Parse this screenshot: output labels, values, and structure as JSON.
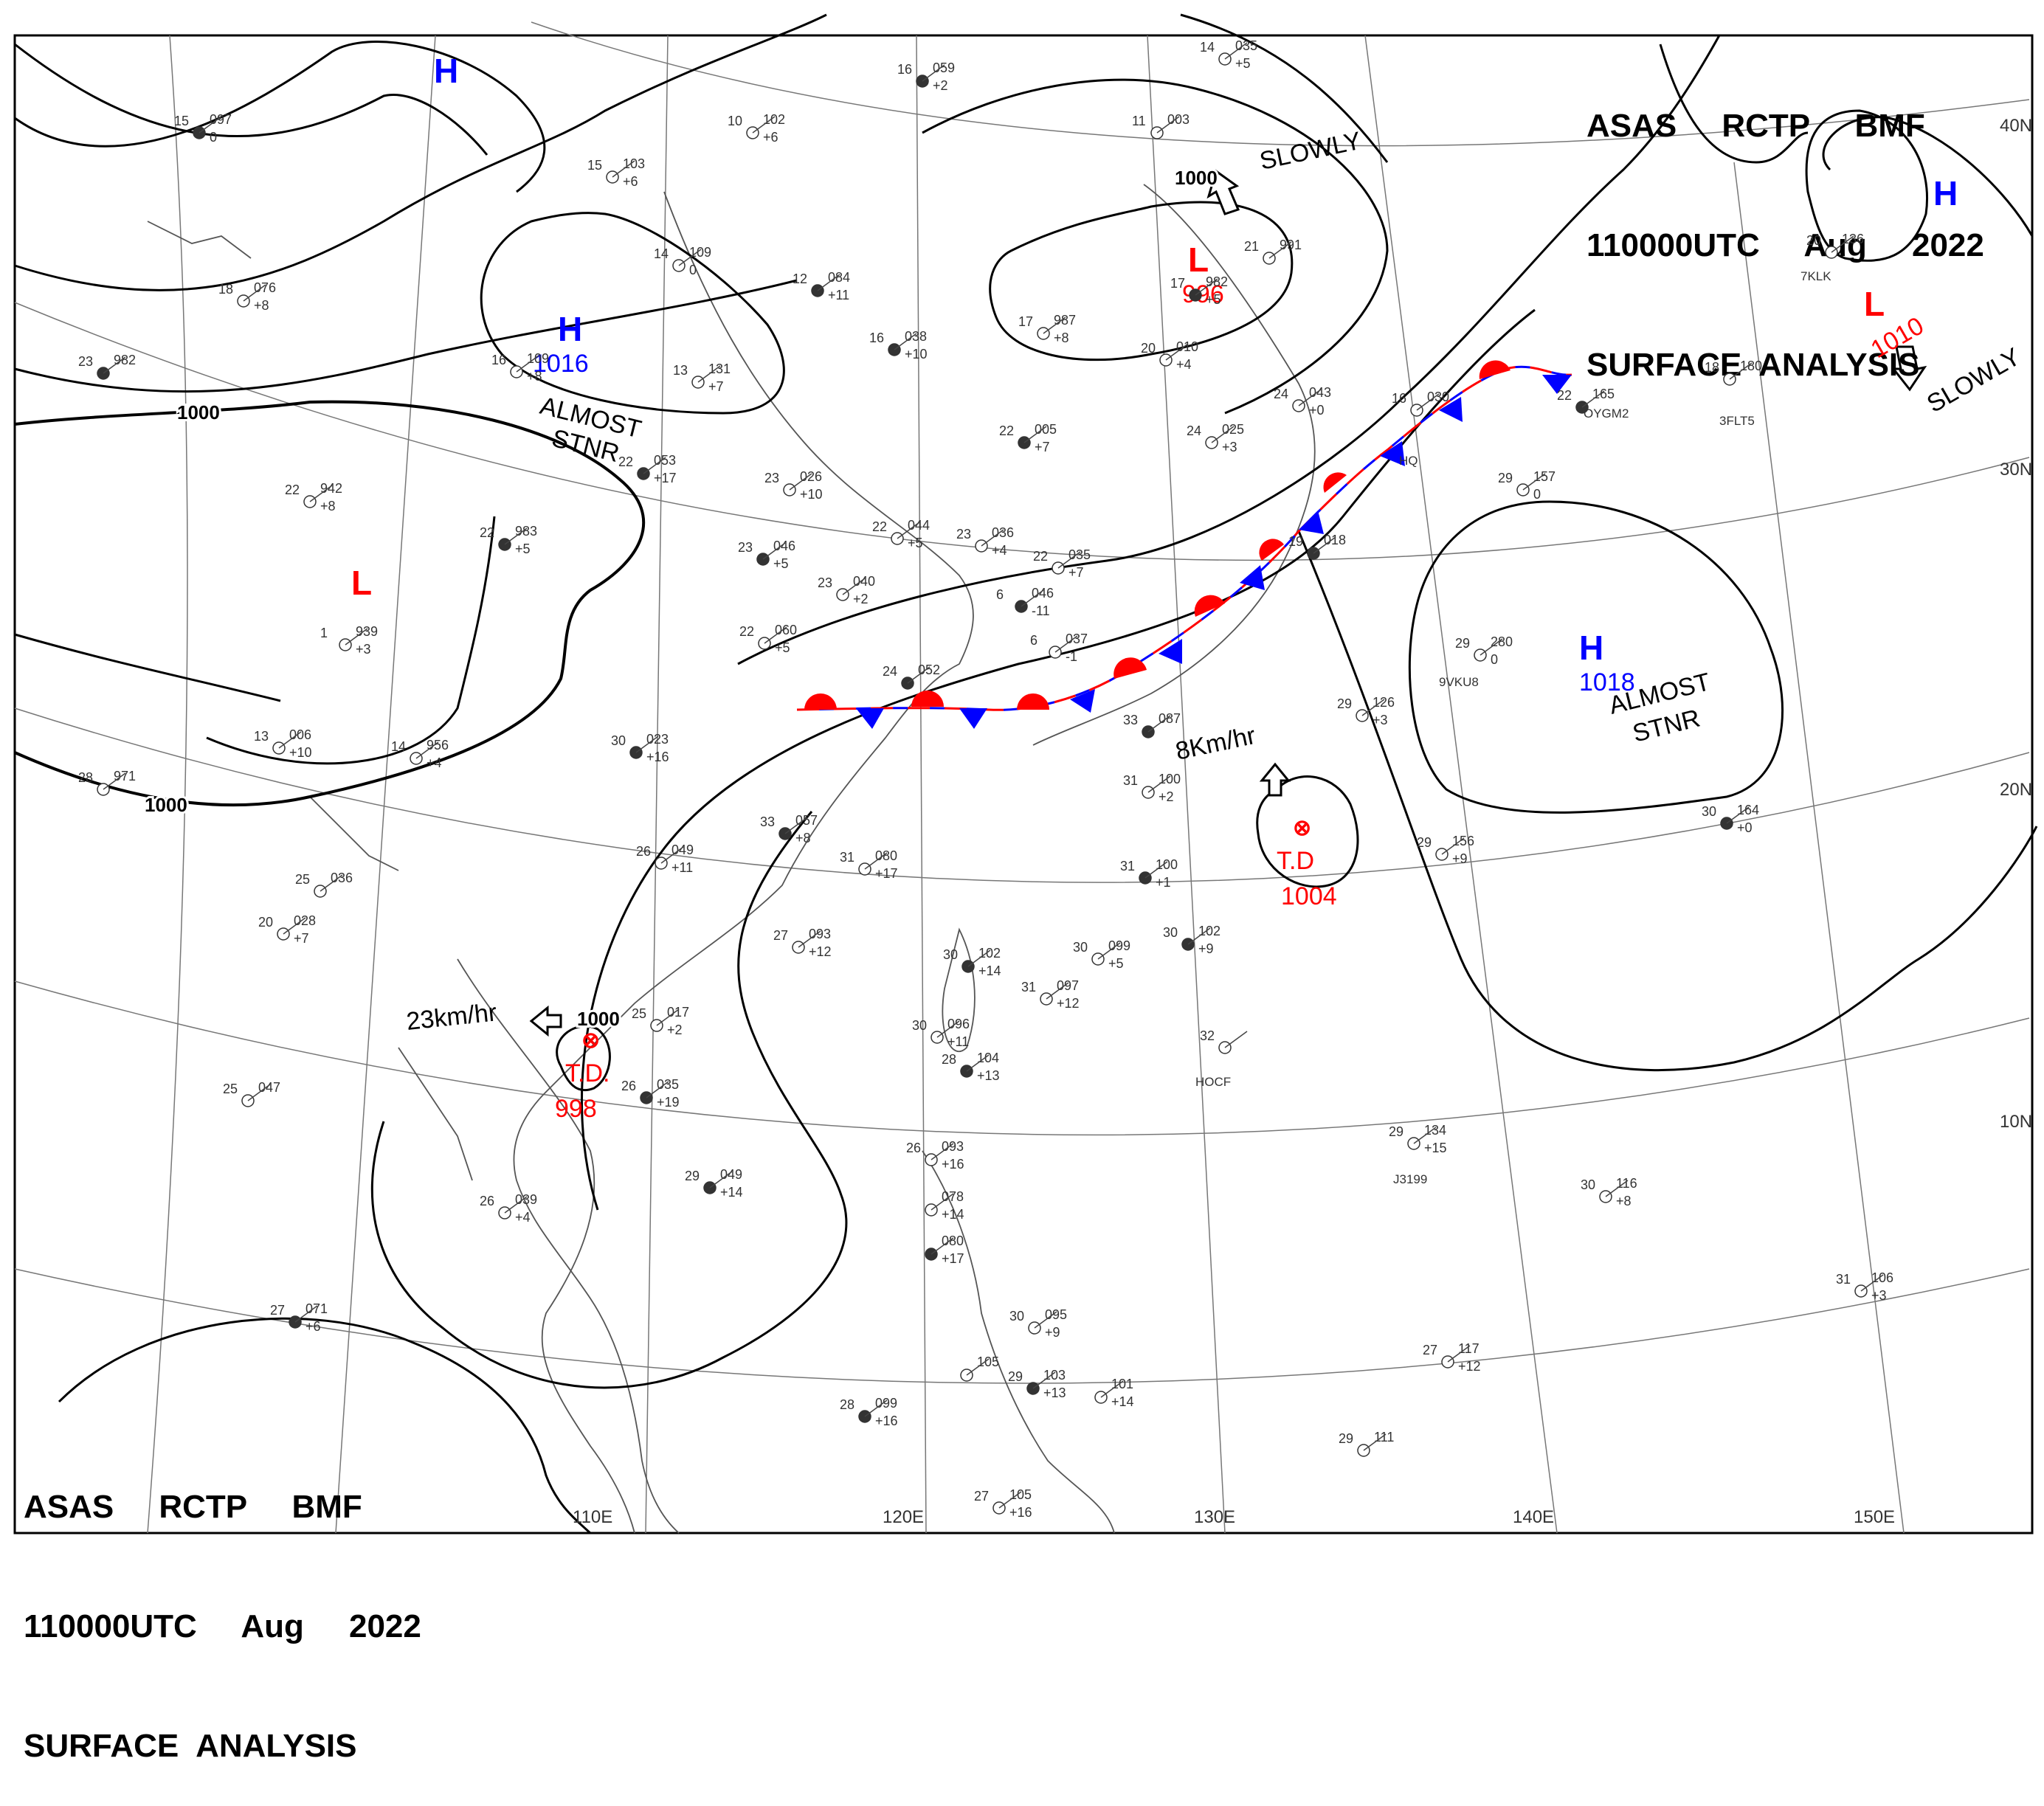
{
  "header": {
    "line1": "ASAS     RCTP     BMF",
    "line2": "110000UTC     Aug     2022",
    "line3": "SURFACE  ANALYSIS"
  },
  "colors": {
    "high": "#0000ff",
    "low": "#ff0000",
    "isobar": "#000000",
    "station": "#333333"
  },
  "lon_labels": [
    "110E",
    "120E",
    "130E",
    "140E",
    "150E"
  ],
  "lat_labels": [
    "10N",
    "20N",
    "30N",
    "40N"
  ],
  "systems": [
    {
      "type": "H",
      "label": "H",
      "value": ""
    },
    {
      "type": "H",
      "label": "H",
      "value": "1016"
    },
    {
      "type": "H",
      "label": "H",
      "value": "1018"
    },
    {
      "type": "H",
      "label": "H",
      "value": ""
    },
    {
      "type": "L",
      "label": "L",
      "value": ""
    },
    {
      "type": "L",
      "label": "L",
      "value": "996"
    },
    {
      "type": "L",
      "label": "L",
      "value": "1010"
    },
    {
      "type": "TD",
      "label": "T.D",
      "value": "1004"
    },
    {
      "type": "TD",
      "label": "T.D.",
      "value": "998"
    }
  ],
  "annotations": [
    "ALMOST",
    "STNR",
    "ALMOST",
    "STNR",
    "SLOWLY",
    "SLOWLY",
    "8Km/hr",
    "23km/hr"
  ],
  "isobar_labels": [
    "1000",
    "1000",
    "1000",
    "1000"
  ],
  "stations": [
    {
      "t": "15",
      "p": "097",
      "d": "0"
    },
    {
      "t": "10",
      "p": "102",
      "d": "+6"
    },
    {
      "t": "15",
      "p": "103",
      "d": "+6"
    },
    {
      "t": "16",
      "p": "059",
      "d": "+2"
    },
    {
      "t": "14",
      "p": "035",
      "d": "+5"
    },
    {
      "t": "14",
      "p": "109",
      "d": "0"
    },
    {
      "t": "12",
      "p": "084",
      "d": "+11"
    },
    {
      "t": "11",
      "p": "003",
      "d": ""
    },
    {
      "t": "18",
      "p": "076",
      "d": "+8"
    },
    {
      "t": "17",
      "p": "982",
      "d": "+5"
    },
    {
      "t": "17",
      "p": "987",
      "d": "+8"
    },
    {
      "t": "21",
      "p": "991",
      "d": ""
    },
    {
      "t": "23",
      "p": "982",
      "d": ""
    },
    {
      "t": "16",
      "p": "109",
      "d": "+8"
    },
    {
      "t": "13",
      "p": "131",
      "d": "+7"
    },
    {
      "t": "16",
      "p": "038",
      "d": "+10"
    },
    {
      "t": "20",
      "p": "010",
      "d": "+4"
    },
    {
      "t": "24",
      "p": "043",
      "d": "+0"
    },
    {
      "t": "22",
      "p": "005",
      "d": "+7"
    },
    {
      "t": "24",
      "p": "025",
      "d": "+3"
    },
    {
      "t": "16",
      "p": "030",
      "d": ""
    },
    {
      "t": "22",
      "p": "165",
      "d": ""
    },
    {
      "t": "18",
      "p": "180",
      "d": ""
    },
    {
      "t": "20",
      "p": "136",
      "d": ""
    },
    {
      "t": "22",
      "p": "053",
      "d": "+17"
    },
    {
      "t": "23",
      "p": "026",
      "d": "+10"
    },
    {
      "t": "22",
      "p": "942",
      "d": "+8"
    },
    {
      "t": "22",
      "p": "983",
      "d": "+5"
    },
    {
      "t": "22",
      "p": "044",
      "d": "+5"
    },
    {
      "t": "23",
      "p": "036",
      "d": "+4"
    },
    {
      "t": "23",
      "p": "046",
      "d": "+5"
    },
    {
      "t": "23",
      "p": "040",
      "d": "+2"
    },
    {
      "t": "22",
      "p": "035",
      "d": "+7"
    },
    {
      "t": "6",
      "p": "046",
      "d": "-11"
    },
    {
      "t": "6",
      "p": "037",
      "d": "-1"
    },
    {
      "t": "29",
      "p": "157",
      "d": "0"
    },
    {
      "t": "19",
      "p": "018",
      "d": ""
    },
    {
      "t": "1",
      "p": "939",
      "d": "+3"
    },
    {
      "t": "22",
      "p": "060",
      "d": "+5"
    },
    {
      "t": "24",
      "p": "052",
      "d": ""
    },
    {
      "t": "29",
      "p": "280",
      "d": "0"
    },
    {
      "t": "29",
      "p": "126",
      "d": "+3"
    },
    {
      "t": "33",
      "p": "087",
      "d": ""
    },
    {
      "t": "13",
      "p": "006",
      "d": "+10"
    },
    {
      "t": "14",
      "p": "956",
      "d": "+4"
    },
    {
      "t": "30",
      "p": "023",
      "d": "+16"
    },
    {
      "t": "28",
      "p": "971",
      "d": ""
    },
    {
      "t": "31",
      "p": "100",
      "d": "+2"
    },
    {
      "t": "33",
      "p": "057",
      "d": "+8"
    },
    {
      "t": "26",
      "p": "049",
      "d": "+11"
    },
    {
      "t": "31",
      "p": "080",
      "d": "+17"
    },
    {
      "t": "31",
      "p": "100",
      "d": "+1"
    },
    {
      "t": "25",
      "p": "036",
      "d": ""
    },
    {
      "t": "29",
      "p": "156",
      "d": "+9"
    },
    {
      "t": "30",
      "p": "164",
      "d": "+0"
    },
    {
      "t": "20",
      "p": "028",
      "d": "+7"
    },
    {
      "t": "27",
      "p": "093",
      "d": "+12"
    },
    {
      "t": "30",
      "p": "102",
      "d": "+14"
    },
    {
      "t": "31",
      "p": "097",
      "d": "+12"
    },
    {
      "t": "30",
      "p": "099",
      "d": "+5"
    },
    {
      "t": "30",
      "p": "102",
      "d": "+9"
    },
    {
      "t": "25",
      "p": "017",
      "d": "+2"
    },
    {
      "t": "30",
      "p": "096",
      "d": "+11"
    },
    {
      "t": "28",
      "p": "104",
      "d": "+13"
    },
    {
      "t": "32",
      "p": "",
      "d": ""
    },
    {
      "t": "25",
      "p": "047",
      "d": ""
    },
    {
      "t": "26",
      "p": "035",
      "d": "+19"
    },
    {
      "t": "29",
      "p": "134",
      "d": "+15"
    },
    {
      "t": "26",
      "p": "093",
      "d": "+16"
    },
    {
      "t": "29",
      "p": "049",
      "d": "+14"
    },
    {
      "t": "26",
      "p": "039",
      "d": "+4"
    },
    {
      "t": "",
      "p": "078",
      "d": "+14"
    },
    {
      "t": "",
      "p": "080",
      "d": "+17"
    },
    {
      "t": "30",
      "p": "116",
      "d": "+8"
    },
    {
      "t": "31",
      "p": "106",
      "d": "+3"
    },
    {
      "t": "27",
      "p": "071",
      "d": "+6"
    },
    {
      "t": "30",
      "p": "095",
      "d": "+9"
    },
    {
      "t": "27",
      "p": "117",
      "d": "+12"
    },
    {
      "t": "29",
      "p": "103",
      "d": "+13"
    },
    {
      "t": "",
      "p": "105",
      "d": ""
    },
    {
      "t": "",
      "p": "101",
      "d": "+14"
    },
    {
      "t": "28",
      "p": "099",
      "d": "+16"
    },
    {
      "t": "29",
      "p": "111",
      "d": ""
    },
    {
      "t": "27",
      "p": "105",
      "d": "+16"
    }
  ],
  "ship_ids": [
    "7KLK",
    "3FLT5",
    "OYGM2",
    "9VKU8",
    "J3199",
    "HOCF",
    "HQ"
  ]
}
